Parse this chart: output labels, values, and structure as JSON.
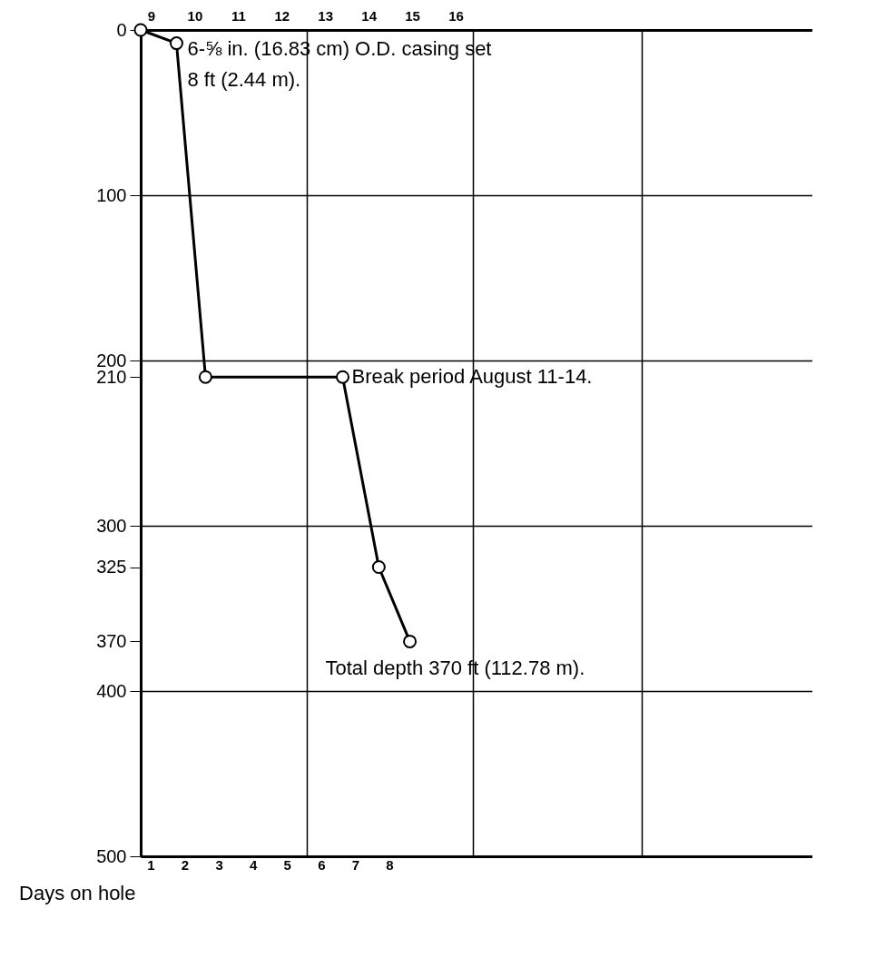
{
  "chart_data": {
    "type": "line",
    "xlabel": "Days on hole",
    "x": [
      0.71,
      1.76,
      2.61,
      6.63,
      7.69,
      8.6
    ],
    "series": [
      {
        "color": "#000000",
        "values": [
          0,
          8,
          210,
          210,
          325,
          370
        ]
      }
    ],
    "marker": "circle",
    "line_style": "solid",
    "xlim": [
      0.71,
      20.4
    ],
    "xticks": [
      1,
      2,
      3,
      4,
      5,
      6,
      7,
      8,
      {
        "value": 5.58,
        "label": null
      },
      {
        "value": 10.45,
        "label": null
      },
      {
        "value": 15.4,
        "label": null
      }
    ],
    "x2lim": [
      8.76,
      24.2
    ],
    "x2ticks": [
      9,
      10,
      11,
      12,
      13,
      14,
      15,
      16
    ],
    "ylim": [
      500,
      0
    ],
    "yticks": [
      0,
      100,
      200,
      210,
      300,
      325,
      370,
      400,
      500
    ],
    "grid": true,
    "annotations": [
      {
        "text": "6-⅝ in. (16.83 cm) O.D.  casing set\n8 ft (2.44 m).",
        "x": 1.76,
        "y": 8
      },
      {
        "text": "Break period August 11-14.",
        "x": 6.63,
        "y": 210
      },
      {
        "text": "Total depth 370 ft (112.78 m).",
        "x": 8.6,
        "y": 370
      }
    ]
  }
}
